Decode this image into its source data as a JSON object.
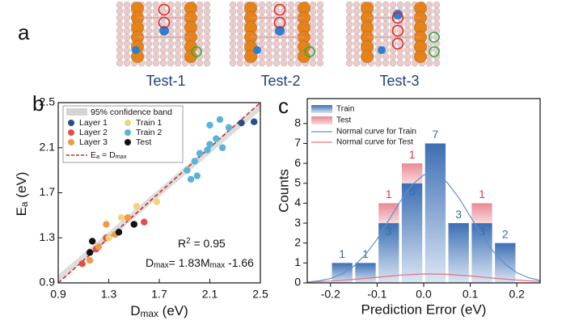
{
  "panel_a": {
    "label": "a",
    "captions": [
      "Test-1",
      "Test-2",
      "Test-3"
    ]
  },
  "chart_data": [
    {
      "type": "scatter",
      "panel_label": "b",
      "xlabel": [
        "D",
        "max",
        " (eV)"
      ],
      "ylabel": [
        "E",
        "a",
        " (eV)"
      ],
      "xlim": [
        0.9,
        2.5
      ],
      "xticks": [
        0.9,
        1.3,
        1.7,
        2.1,
        2.5
      ],
      "ylim": [
        0.9,
        2.5
      ],
      "yticks": [
        0.9,
        1.3,
        1.7,
        2.1,
        2.5
      ],
      "band_label": "95% confidence band",
      "reference_line_label": [
        "E",
        "a",
        " = D",
        "max"
      ],
      "annotations": [
        [
          "R",
          "2",
          " = 0.95"
        ],
        [
          "D",
          "max",
          "= 1.83M",
          "max",
          " -1.66"
        ]
      ],
      "series": [
        {
          "name": "Layer 1",
          "color": "#2b4e86",
          "x": [
            2.35,
            2.45
          ],
          "values": [
            2.32,
            2.33
          ]
        },
        {
          "name": "Layer 2",
          "color": "#e0504a",
          "x": [
            1.09,
            1.2,
            1.28,
            1.5,
            1.58
          ],
          "values": [
            1.07,
            1.2,
            1.3,
            1.42,
            1.44
          ]
        },
        {
          "name": "Layer 3",
          "color": "#ee9a4a",
          "x": [
            1.28,
            1.35,
            1.22,
            1.45,
            1.15
          ],
          "values": [
            1.42,
            1.33,
            1.22,
            1.48,
            1.1
          ]
        },
        {
          "name": "Train 1",
          "color": "#f5d27a",
          "x": [
            1.52,
            1.68,
            1.4,
            1.3
          ],
          "values": [
            1.58,
            1.62,
            1.48,
            1.3
          ]
        },
        {
          "name": "Train 2",
          "color": "#5ab4d8",
          "x": [
            1.92,
            1.98,
            2.02,
            1.95,
            2.0,
            2.08,
            2.1,
            2.15,
            2.1,
            2.18,
            2.25,
            2.2
          ],
          "values": [
            1.9,
            1.98,
            2.05,
            1.82,
            1.85,
            2.08,
            2.13,
            2.18,
            2.3,
            2.35,
            2.28,
            2.1
          ]
        },
        {
          "name": "Test",
          "color": "#111111",
          "x": [
            1.17,
            1.38,
            1.5,
            1.15
          ],
          "values": [
            1.27,
            1.35,
            1.42,
            1.17
          ]
        }
      ]
    },
    {
      "type": "histogram",
      "panel_label": "c",
      "xlabel": "Prediction Error (eV)",
      "ylabel": "Counts",
      "xlim": [
        -0.25,
        0.25
      ],
      "xticks": [
        -0.2,
        -0.1,
        {
          "value": 0,
          "label": "0.0"
        },
        0.1,
        0.2
      ],
      "ylim": [
        0,
        9.25
      ],
      "yticks": [
        0,
        1,
        2,
        3,
        4,
        5,
        6,
        7,
        8
      ],
      "bins": [
        -0.2,
        -0.15,
        -0.1,
        -0.05,
        0,
        0.05,
        0.1,
        0.15,
        0.2
      ],
      "series": [
        {
          "name": "Train",
          "color": "#3d6fb4",
          "values": [
            1,
            1,
            3,
            5,
            7,
            3,
            3,
            2
          ]
        },
        {
          "name": "Test",
          "color": "#e88a94",
          "values": [
            0,
            0,
            1,
            1,
            0,
            0,
            1,
            0
          ]
        }
      ],
      "curves": [
        {
          "name": "Normal curve for Train",
          "color": "#5b8fd0",
          "x": [
            -0.25,
            -0.225,
            -0.2,
            -0.175,
            -0.15,
            -0.125,
            -0.1,
            -0.075,
            -0.05,
            -0.025,
            0,
            0.025,
            0.05,
            0.075,
            0.1,
            0.125,
            0.15,
            0.175,
            0.2,
            0.225,
            0.25
          ],
          "values": [
            0.04,
            0.1,
            0.22,
            0.45,
            0.84,
            1.42,
            2.2,
            3.14,
            4.1,
            4.92,
            5.42,
            5.46,
            5.05,
            4.29,
            3.34,
            2.38,
            1.56,
            0.94,
            0.51,
            0.26,
            0.12
          ]
        },
        {
          "name": "Normal curve for Test",
          "color": "#e8707a",
          "x": [
            -0.25,
            -0.2,
            -0.15,
            -0.1,
            -0.05,
            0,
            0.05,
            0.1,
            0.15,
            0.2,
            0.25
          ],
          "values": [
            0.04,
            0.09,
            0.18,
            0.28,
            0.39,
            0.45,
            0.43,
            0.35,
            0.24,
            0.14,
            0.07
          ]
        }
      ]
    }
  ]
}
